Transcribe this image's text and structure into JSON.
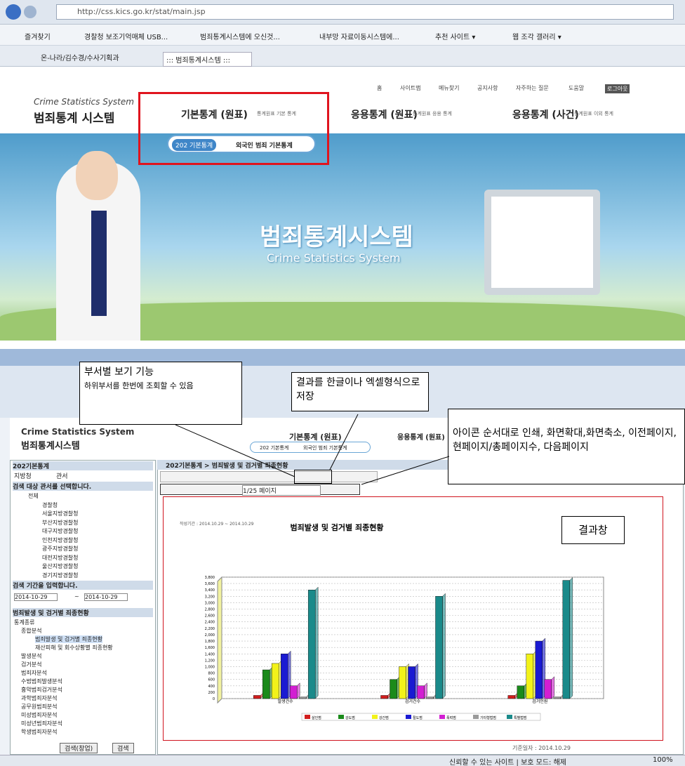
{
  "browser_top": {
    "url": "http://css.kics.go.kr/stat/main.jsp",
    "favorites": [
      "즐겨찾기",
      "경찰청 보조기억매체 USB...",
      "범죄통계시스템에 오신것...",
      "내부망 자료이동시스템에...",
      "추천 사이트 ▾",
      "웹 조각 갤러리 ▾"
    ],
    "tabs": [
      "온-나라/김수경/수사기획과",
      "::: 범죄통계시스템 :::"
    ]
  },
  "site": {
    "logo_en": "Crime Statistics System",
    "logo_ko": "범죄통계 시스템",
    "top_links": [
      "홈",
      "사이트맵",
      "메뉴찾기",
      "공지사항",
      "자주하는 질문",
      "도움말",
      "로그아웃"
    ],
    "menus": [
      {
        "label": "기본통계 (원표)",
        "desc": "통계원표 기본 통계"
      },
      {
        "label": "응용통계 (원표)",
        "desc": "통계원표 응용 통계"
      },
      {
        "label": "응용통계 (사건)",
        "desc": "통계원표 이외 통계"
      }
    ],
    "submenu": [
      "202 기본통계",
      "외국인 범죄 기본통계"
    ],
    "banner_ko": "범죄통계시스템",
    "banner_en": "Crime Statistics System"
  },
  "app": {
    "logo_en": "Crime Statistics System",
    "logo_ko": "범죄통계시스템",
    "menu": "기본통계 (원표)",
    "menu2": "응용통계 (원표)",
    "submenu": [
      "202 기본통계",
      "외국인 범죄 기본통계"
    ],
    "sidebar_title": "202기본통계",
    "radios": [
      "지방청",
      "관서"
    ],
    "target_label": "검색 대상 관서를 선택합니다.",
    "tree": [
      "전체",
      "경찰청",
      "서울지방경찰청",
      "부산지방경찰청",
      "대구지방경찰청",
      "인천지방경찰청",
      "광주지방경찰청",
      "대전지방경찰청",
      "울산지방경찰청",
      "경기지방경찰청"
    ],
    "period_label": "검색 기간을 입력합니다.",
    "date_from": "2014-10-29",
    "date_sep": "~",
    "date_to": "2014-10-29",
    "report_label": "범죄발생 및 검거별 죄종현황",
    "report_tree": [
      "통계종류",
      "종합분석",
      "범죄발생 및 검거별 죄종현황",
      "재산피해 및 회수상황별 죄종현황",
      "발생분석",
      "검거분석",
      "범죄자분석",
      "수법범죄발생분석",
      "흉악범죄검거분석",
      "과학범죄자분석",
      "공무원범죄분석",
      "미성범죄자분석",
      "미성년범죄자분석",
      "학생범죄자분석"
    ],
    "buttons": [
      "검색(창업)",
      "검색"
    ],
    "breadcrumb": "202기본통계 > 범죄발생 및 검거별 죄종현황",
    "page": "1/25 페이지",
    "footer_date": "기준일자 : 2014.10.29",
    "status": "신뢰할 수 있는 사이트 | 보호 모드: 해제",
    "zoom": "100%"
  },
  "annotations": [
    "부서별 보기 기능",
    "하위부서를 한번에 조회할 수 있음",
    "결과를 한글이나 엑셀형식으로 저장",
    "아이콘 순서대로 인쇄, 화면확대,화면축소, 이전페이지, 현페이지/총페이지수, 다음페이지",
    "결과창"
  ],
  "chart_data": {
    "type": "bar",
    "title": "범죄발생 및 검거별 죄종현황",
    "meta": "작성기간 : 2014.10.29 ~ 2014.10.29",
    "categories": [
      "발생건수",
      "검거건수",
      "검거인원"
    ],
    "series": [
      {
        "name": "살인범",
        "color": "#d21e1e",
        "values": [
          100,
          100,
          100
        ]
      },
      {
        "name": "강도범",
        "color": "#1a8a1a",
        "values": [
          900,
          600,
          400
        ]
      },
      {
        "name": "강간범",
        "color": "#f2f21a",
        "values": [
          1100,
          1000,
          1400
        ]
      },
      {
        "name": "절도범",
        "color": "#1a1ad2",
        "values": [
          1400,
          1000,
          1800
        ]
      },
      {
        "name": "폭력범",
        "color": "#d21ed2",
        "values": [
          400,
          400,
          600
        ]
      },
      {
        "name": "기타형법범",
        "color": "#9a9a9a",
        "values": [
          50,
          50,
          50
        ]
      },
      {
        "name": "특별법범",
        "color": "#1a8a8a",
        "values": [
          3400,
          3200,
          3700
        ]
      }
    ],
    "ylim": [
      0,
      3800
    ],
    "yticks": [
      0,
      200,
      400,
      600,
      800,
      {
        "value": 1000,
        "label": "1,000"
      },
      {
        "value": 1200,
        "label": "1,200"
      },
      {
        "value": 1400,
        "label": "1,400"
      },
      {
        "value": 1600,
        "label": "1,600"
      },
      {
        "value": 1800,
        "label": "1,800"
      },
      {
        "value": 2000,
        "label": "2,000"
      },
      {
        "value": 2200,
        "label": "2,200"
      },
      {
        "value": 2400,
        "label": "2,400"
      },
      {
        "value": 2600,
        "label": "2,600"
      },
      {
        "value": 2800,
        "label": "2,800"
      },
      {
        "value": 3000,
        "label": "3,000"
      },
      {
        "value": 3200,
        "label": "3,200"
      },
      {
        "value": 3400,
        "label": "3,400"
      },
      {
        "value": 3600,
        "label": "3,600"
      },
      {
        "value": 3800,
        "label": "3,800"
      }
    ],
    "grid": true
  }
}
